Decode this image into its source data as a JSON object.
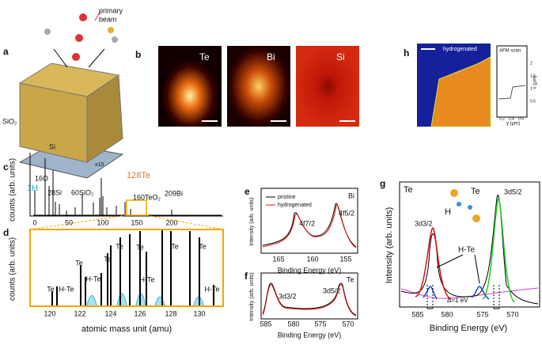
{
  "panel_a": {
    "label": "a",
    "beam": [
      "primary",
      "beam"
    ],
    "oxide": "SiO₂",
    "substrate": "Si"
  },
  "panel_b": {
    "label": "b",
    "maps": [
      "Te",
      "Bi",
      "Si"
    ]
  },
  "panel_h": {
    "label": "h",
    "image_label": "hydrogenated",
    "inset_title": "AFM scan",
    "x_label": "x (μm)",
    "y_label": "y (μm)",
    "x_ticks": [
      0.5,
      1,
      1.5,
      2
    ],
    "y_ticks": [
      0.2,
      0.4,
      0.6
    ]
  },
  "panel_c": {
    "label": "c",
    "y_label": "counts (arb. units)",
    "x_ticks": [
      0,
      50,
      100,
      150,
      200
    ],
    "zoom": "x10",
    "peaks": [
      "16O",
      "1H",
      "28Si",
      "60SiO₂",
      "128Te",
      "160TeO₂",
      "209Bi"
    ]
  },
  "panel_d": {
    "label": "d",
    "y_label": "counts (arb. units)",
    "x_label": "atomic mass unit (amu)",
    "x_ticks": [
      120,
      122,
      124,
      126,
      128,
      130
    ],
    "peak_te": "Te",
    "peak_hte": "H-Te"
  },
  "panel_e": {
    "label": "e",
    "element": "Bi",
    "legend": [
      "pristine",
      "hydrogenated"
    ],
    "peaks": [
      "4f7/2",
      "4f5/2"
    ],
    "x_ticks": [
      165,
      160,
      155
    ],
    "x_label": "Binding Energy (eV)",
    "y_label": "Intensity (arb. units)"
  },
  "panel_f": {
    "label": "f",
    "element": "Te",
    "peaks": [
      "3d3/2",
      "3d5/2"
    ],
    "x_ticks": [
      585,
      580,
      575,
      570
    ],
    "x_label": "Binding Energy (eV)",
    "y_label": "Intensity (arb. units)"
  },
  "panel_g": {
    "label": "g",
    "element": "Te",
    "molecule": [
      "Te",
      "H"
    ],
    "peaks": [
      "3d3/2",
      "3d5/2",
      "H-Te"
    ],
    "shift": "Δ=1 eV",
    "x_ticks": [
      585,
      580,
      575,
      570
    ],
    "x_label": "Binding Energy (eV)",
    "y_label": "Intensity (arb. units)"
  }
}
